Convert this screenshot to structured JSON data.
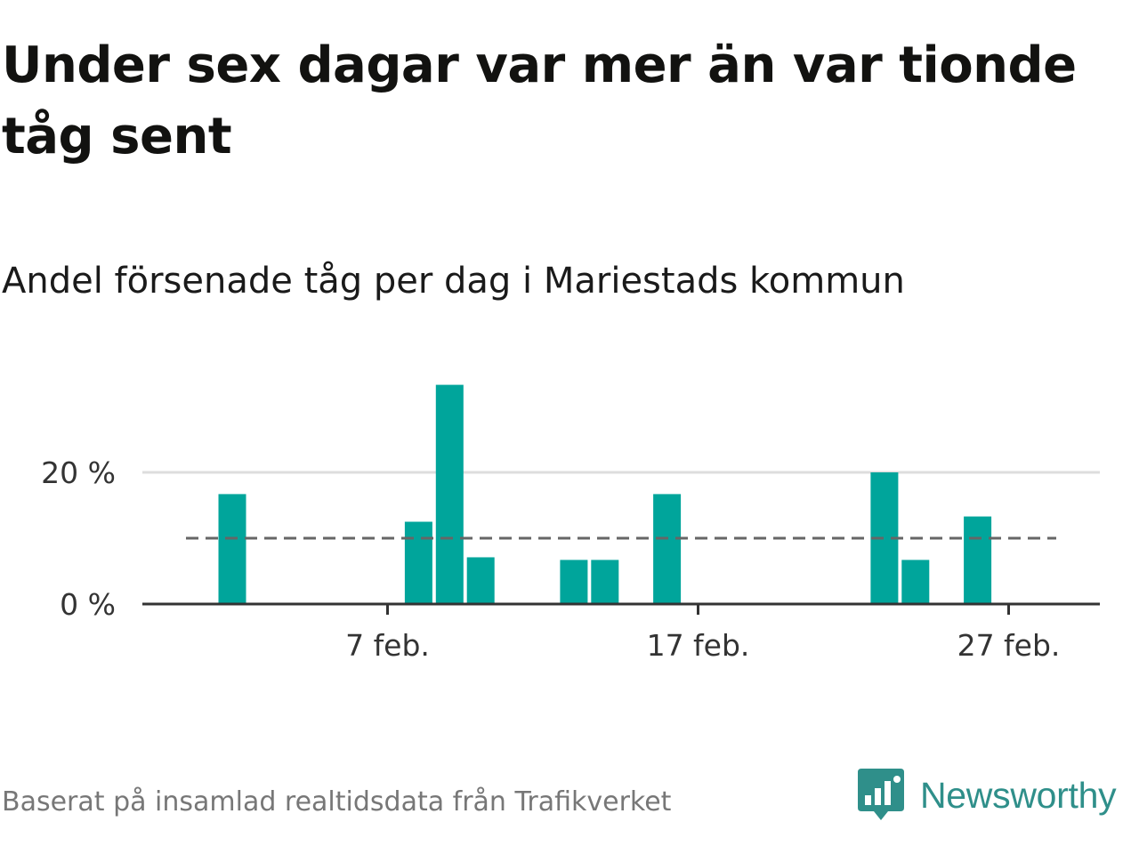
{
  "title": "Under sex dagar var mer än var tionde tåg sent",
  "subtitle": "Andel försenade tåg per dag i Mariestads kommun",
  "source": "Baserat på insamlad realtidsdata från Trafikverket",
  "brand": {
    "name": "Newsworthy",
    "icon": "newsworthy-logo-icon",
    "color": "#2f8f8a"
  },
  "colors": {
    "bar": "#00a59b",
    "grid": "#dddddd",
    "axis": "#333333",
    "average_line": "#666666"
  },
  "chart_data": {
    "type": "bar",
    "x_unit": "day of February",
    "x_start": 1,
    "x_end": 28,
    "values": [
      null,
      16.7,
      null,
      null,
      null,
      null,
      null,
      12.5,
      33.3,
      7.1,
      null,
      null,
      6.7,
      6.7,
      null,
      16.7,
      null,
      null,
      null,
      null,
      null,
      null,
      20.0,
      6.7,
      null,
      13.3,
      null,
      null
    ],
    "average_line": 10,
    "ylim": [
      0,
      33.3
    ],
    "y_ticks": [
      {
        "value": 0,
        "label": "0 %"
      },
      {
        "value": 20,
        "label": "20 %"
      }
    ],
    "x_ticks": [
      {
        "day": 7,
        "label": "7 feb."
      },
      {
        "day": 17,
        "label": "17 feb."
      },
      {
        "day": 27,
        "label": "27 feb."
      }
    ],
    "grid": true
  }
}
